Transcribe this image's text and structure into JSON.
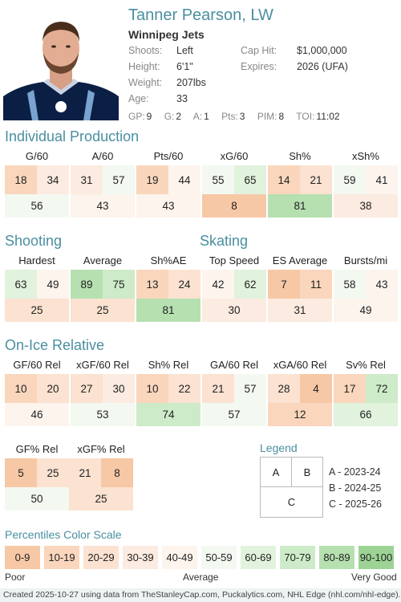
{
  "player": {
    "name": "Tanner Pearson, LW",
    "team": "Winnipeg Jets",
    "shoots_label": "Shoots:",
    "shoots": "Left",
    "height_label": "Height:",
    "height": "6'1\"",
    "weight_label": "Weight:",
    "weight": "207lbs",
    "age_label": "Age:",
    "age": "33",
    "cap_label": "Cap Hit:",
    "cap_hit": "$1,000,000",
    "expires_label": "Expires:",
    "expires": "2026 (UFA)",
    "game_stats": [
      {
        "label": "GP:",
        "value": "9"
      },
      {
        "label": "G:",
        "value": "2"
      },
      {
        "label": "A:",
        "value": "1"
      },
      {
        "label": "Pts:",
        "value": "3"
      },
      {
        "label": "PIM:",
        "value": "8"
      },
      {
        "label": "TOI:",
        "value": "11:02"
      }
    ]
  },
  "sections": {
    "production": "Individual Production",
    "shooting": "Shooting",
    "skating": "Skating",
    "onice": "On-Ice Relative"
  },
  "metrics": {
    "g60": {
      "label": "G/60",
      "a": 18,
      "b": 34,
      "c": 56
    },
    "a60": {
      "label": "A/60",
      "a": 31,
      "b": 57,
      "c": 43
    },
    "pts60": {
      "label": "Pts/60",
      "a": 19,
      "b": 44,
      "c": 43
    },
    "xg60": {
      "label": "xG/60",
      "a": 55,
      "b": 65,
      "c": 8
    },
    "shpct": {
      "label": "Sh%",
      "a": 14,
      "b": 21,
      "c": 81
    },
    "xshpct": {
      "label": "xSh%",
      "a": 59,
      "b": 41,
      "c": 38
    },
    "hardest": {
      "label": "Hardest",
      "a": 63,
      "b": 49,
      "c": 25
    },
    "average": {
      "label": "Average",
      "a": 89,
      "b": 75,
      "c": 25
    },
    "shae": {
      "label": "Sh%AE",
      "a": 13,
      "b": 24,
      "c": 81
    },
    "topspd": {
      "label": "Top Speed",
      "a": 42,
      "b": 62,
      "c": 30
    },
    "esavg": {
      "label": "ES Average",
      "a": 7,
      "b": 11,
      "c": 31
    },
    "bursts": {
      "label": "Bursts/mi",
      "a": 58,
      "b": 43,
      "c": 49
    },
    "gf60": {
      "label": "GF/60 Rel",
      "a": 10,
      "b": 20,
      "c": 46
    },
    "xgf60": {
      "label": "xGF/60 Rel",
      "a": 27,
      "b": 30,
      "c": 53
    },
    "shrel": {
      "label": "Sh% Rel",
      "a": 10,
      "b": 22,
      "c": 74
    },
    "ga60": {
      "label": "GA/60 Rel",
      "a": 21,
      "b": 57,
      "c": 57
    },
    "xga60": {
      "label": "xGA/60 Rel",
      "a": 28,
      "b": 4,
      "c": 12
    },
    "svrel": {
      "label": "Sv% Rel",
      "a": 17,
      "b": 72,
      "c": 66
    },
    "gfpct": {
      "label": "GF% Rel",
      "a": 5,
      "b": 25,
      "c": 50
    },
    "xgfpct": {
      "label": "xGF% Rel",
      "a": 21,
      "b": 8,
      "c": 25
    }
  },
  "legend": {
    "title": "Legend",
    "a": "A",
    "b": "B",
    "c": "C",
    "a_text": "A - 2023-24",
    "b_text": "B - 2024-25",
    "c_text": "C - 2025-26"
  },
  "scale": {
    "title": "Percentiles Color Scale",
    "bins": [
      "0-9",
      "10-19",
      "20-29",
      "30-39",
      "40-49",
      "50-59",
      "60-69",
      "70-79",
      "80-89",
      "90-100"
    ],
    "colors": [
      "#f7c8a5",
      "#f9d6bc",
      "#fbe2d1",
      "#fcebe0",
      "#fdf4ee",
      "#f3f9f1",
      "#e1f2dd",
      "#cdebc8",
      "#b6e0b0",
      "#9dd496"
    ],
    "poor": "Poor",
    "average": "Average",
    "very_good": "Very Good"
  },
  "footer": "Created 2025-10-27 using data from TheStanleyCap.com, Puckalytics.com, NHL Edge (nhl.com/nhl-edge)."
}
